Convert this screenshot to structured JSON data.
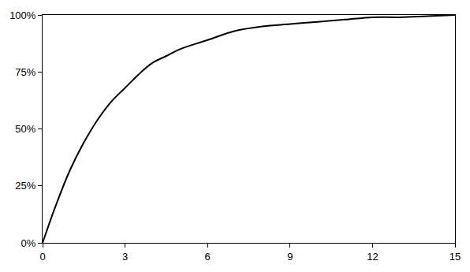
{
  "chart_data": {
    "type": "line",
    "x": [
      0,
      0.5,
      1,
      1.5,
      2,
      2.5,
      3,
      3.5,
      4,
      4.5,
      5,
      6,
      7,
      8,
      9,
      10,
      11,
      12,
      13,
      14,
      15
    ],
    "values": [
      0,
      17,
      32,
      44,
      54,
      62,
      68,
      74,
      79,
      82,
      85,
      89,
      93,
      95,
      96,
      97,
      98,
      99,
      99,
      99.5,
      100
    ],
    "color": "#000000",
    "xlim": [
      0,
      15
    ],
    "xticks": [
      0,
      3,
      6,
      9,
      12,
      15
    ],
    "ylim": [
      0,
      100
    ],
    "yticks": [
      {
        "value": 0,
        "label": "0%"
      },
      {
        "value": 25,
        "label": "25%"
      },
      {
        "value": 50,
        "label": "50%"
      },
      {
        "value": 75,
        "label": "75%"
      },
      {
        "value": 100,
        "label": "100%"
      }
    ],
    "grid": false
  }
}
